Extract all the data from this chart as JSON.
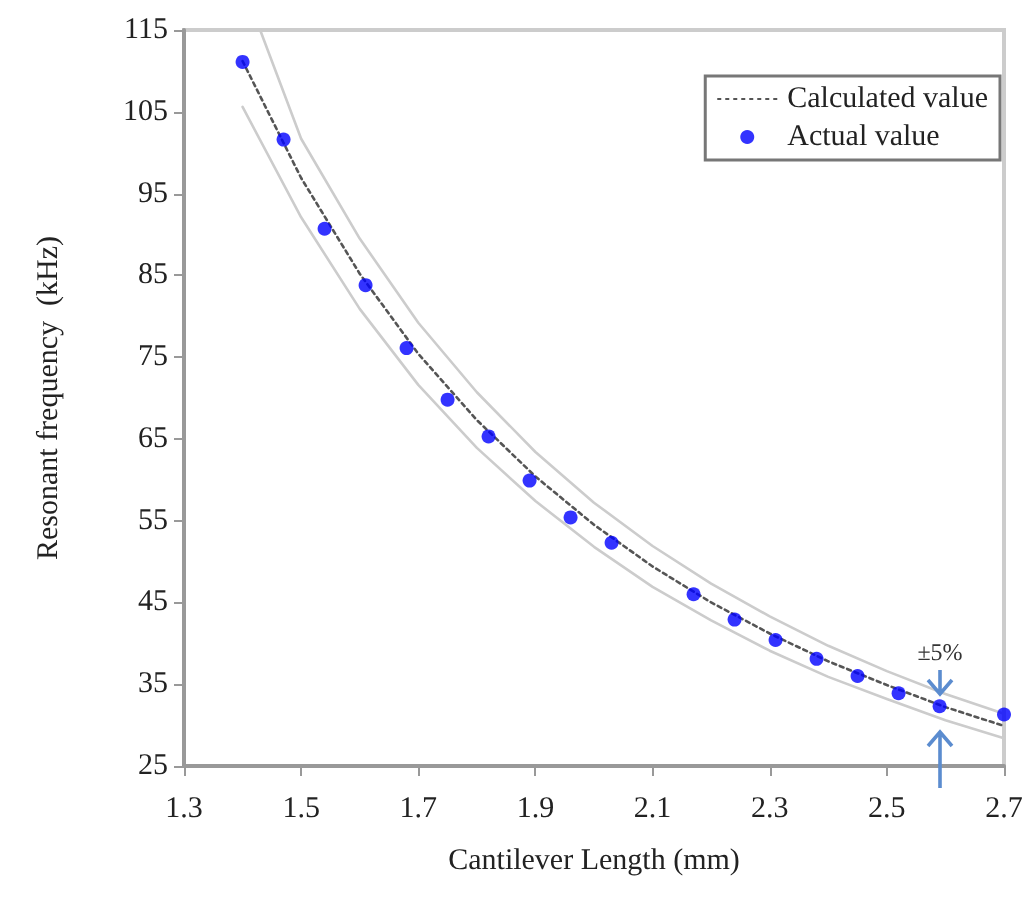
{
  "chart_data": {
    "type": "scatter",
    "xlabel": "Cantilever Length (mm)",
    "ylabel": "Resonant frequency  (kHz)",
    "xlim": [
      1.3,
      2.7
    ],
    "xticks": [
      1.3,
      1.5,
      1.7,
      1.9,
      2.1,
      2.3,
      2.5,
      2.7
    ],
    "ylim": [
      25,
      115
    ],
    "yticks": [
      25,
      35,
      45,
      55,
      65,
      75,
      85,
      95,
      105,
      115
    ],
    "grid": false,
    "legend": "top right",
    "annotations": [
      "±5%"
    ],
    "series": [
      {
        "name": "Calculated value",
        "type": "line",
        "color": "#555555",
        "line_style": "dotted",
        "marker": "none",
        "x": [
          1.4,
          1.5,
          1.6,
          1.7,
          1.8,
          1.9,
          2.0,
          2.1,
          2.2,
          2.3,
          2.4,
          2.5,
          2.6,
          2.7
        ],
        "values": [
          111.2,
          96.9,
          85.2,
          75.4,
          67.3,
          60.4,
          54.5,
          49.4,
          45.0,
          41.2,
          37.8,
          34.9,
          32.2,
          29.9
        ]
      },
      {
        "type": "line",
        "color": "#cccccc",
        "line_style": "solid",
        "marker": "none",
        "x": [
          1.43,
          1.5,
          1.6,
          1.7,
          1.8,
          1.9,
          2.0,
          2.1,
          2.2,
          2.3,
          2.4,
          2.5,
          2.6,
          2.7
        ],
        "values": [
          115.0,
          101.7,
          89.5,
          79.2,
          70.7,
          63.4,
          57.2,
          51.9,
          47.3,
          43.3,
          39.7,
          36.6,
          33.8,
          31.4
        ]
      },
      {
        "type": "line",
        "color": "#cccccc",
        "line_style": "solid",
        "marker": "none",
        "x": [
          1.4,
          1.5,
          1.6,
          1.7,
          1.8,
          1.9,
          2.0,
          2.1,
          2.2,
          2.3,
          2.4,
          2.5,
          2.6,
          2.7
        ],
        "values": [
          105.6,
          92.1,
          80.9,
          71.6,
          63.9,
          57.4,
          51.8,
          46.9,
          42.8,
          39.1,
          35.9,
          33.2,
          30.6,
          28.4
        ]
      },
      {
        "name": "Actual value",
        "color": "#0000ff",
        "marker": "circle",
        "x": [
          1.4,
          1.47,
          1.54,
          1.61,
          1.68,
          1.75,
          1.82,
          1.89,
          1.96,
          2.03,
          2.17,
          2.24,
          2.31,
          2.38,
          2.45,
          2.52,
          2.59,
          2.7
        ],
        "values": [
          111.1,
          101.6,
          90.7,
          83.8,
          76.1,
          69.8,
          65.3,
          59.9,
          55.4,
          52.3,
          46.0,
          42.9,
          40.4,
          38.1,
          36.0,
          33.9,
          32.3,
          31.3
        ]
      }
    ]
  }
}
